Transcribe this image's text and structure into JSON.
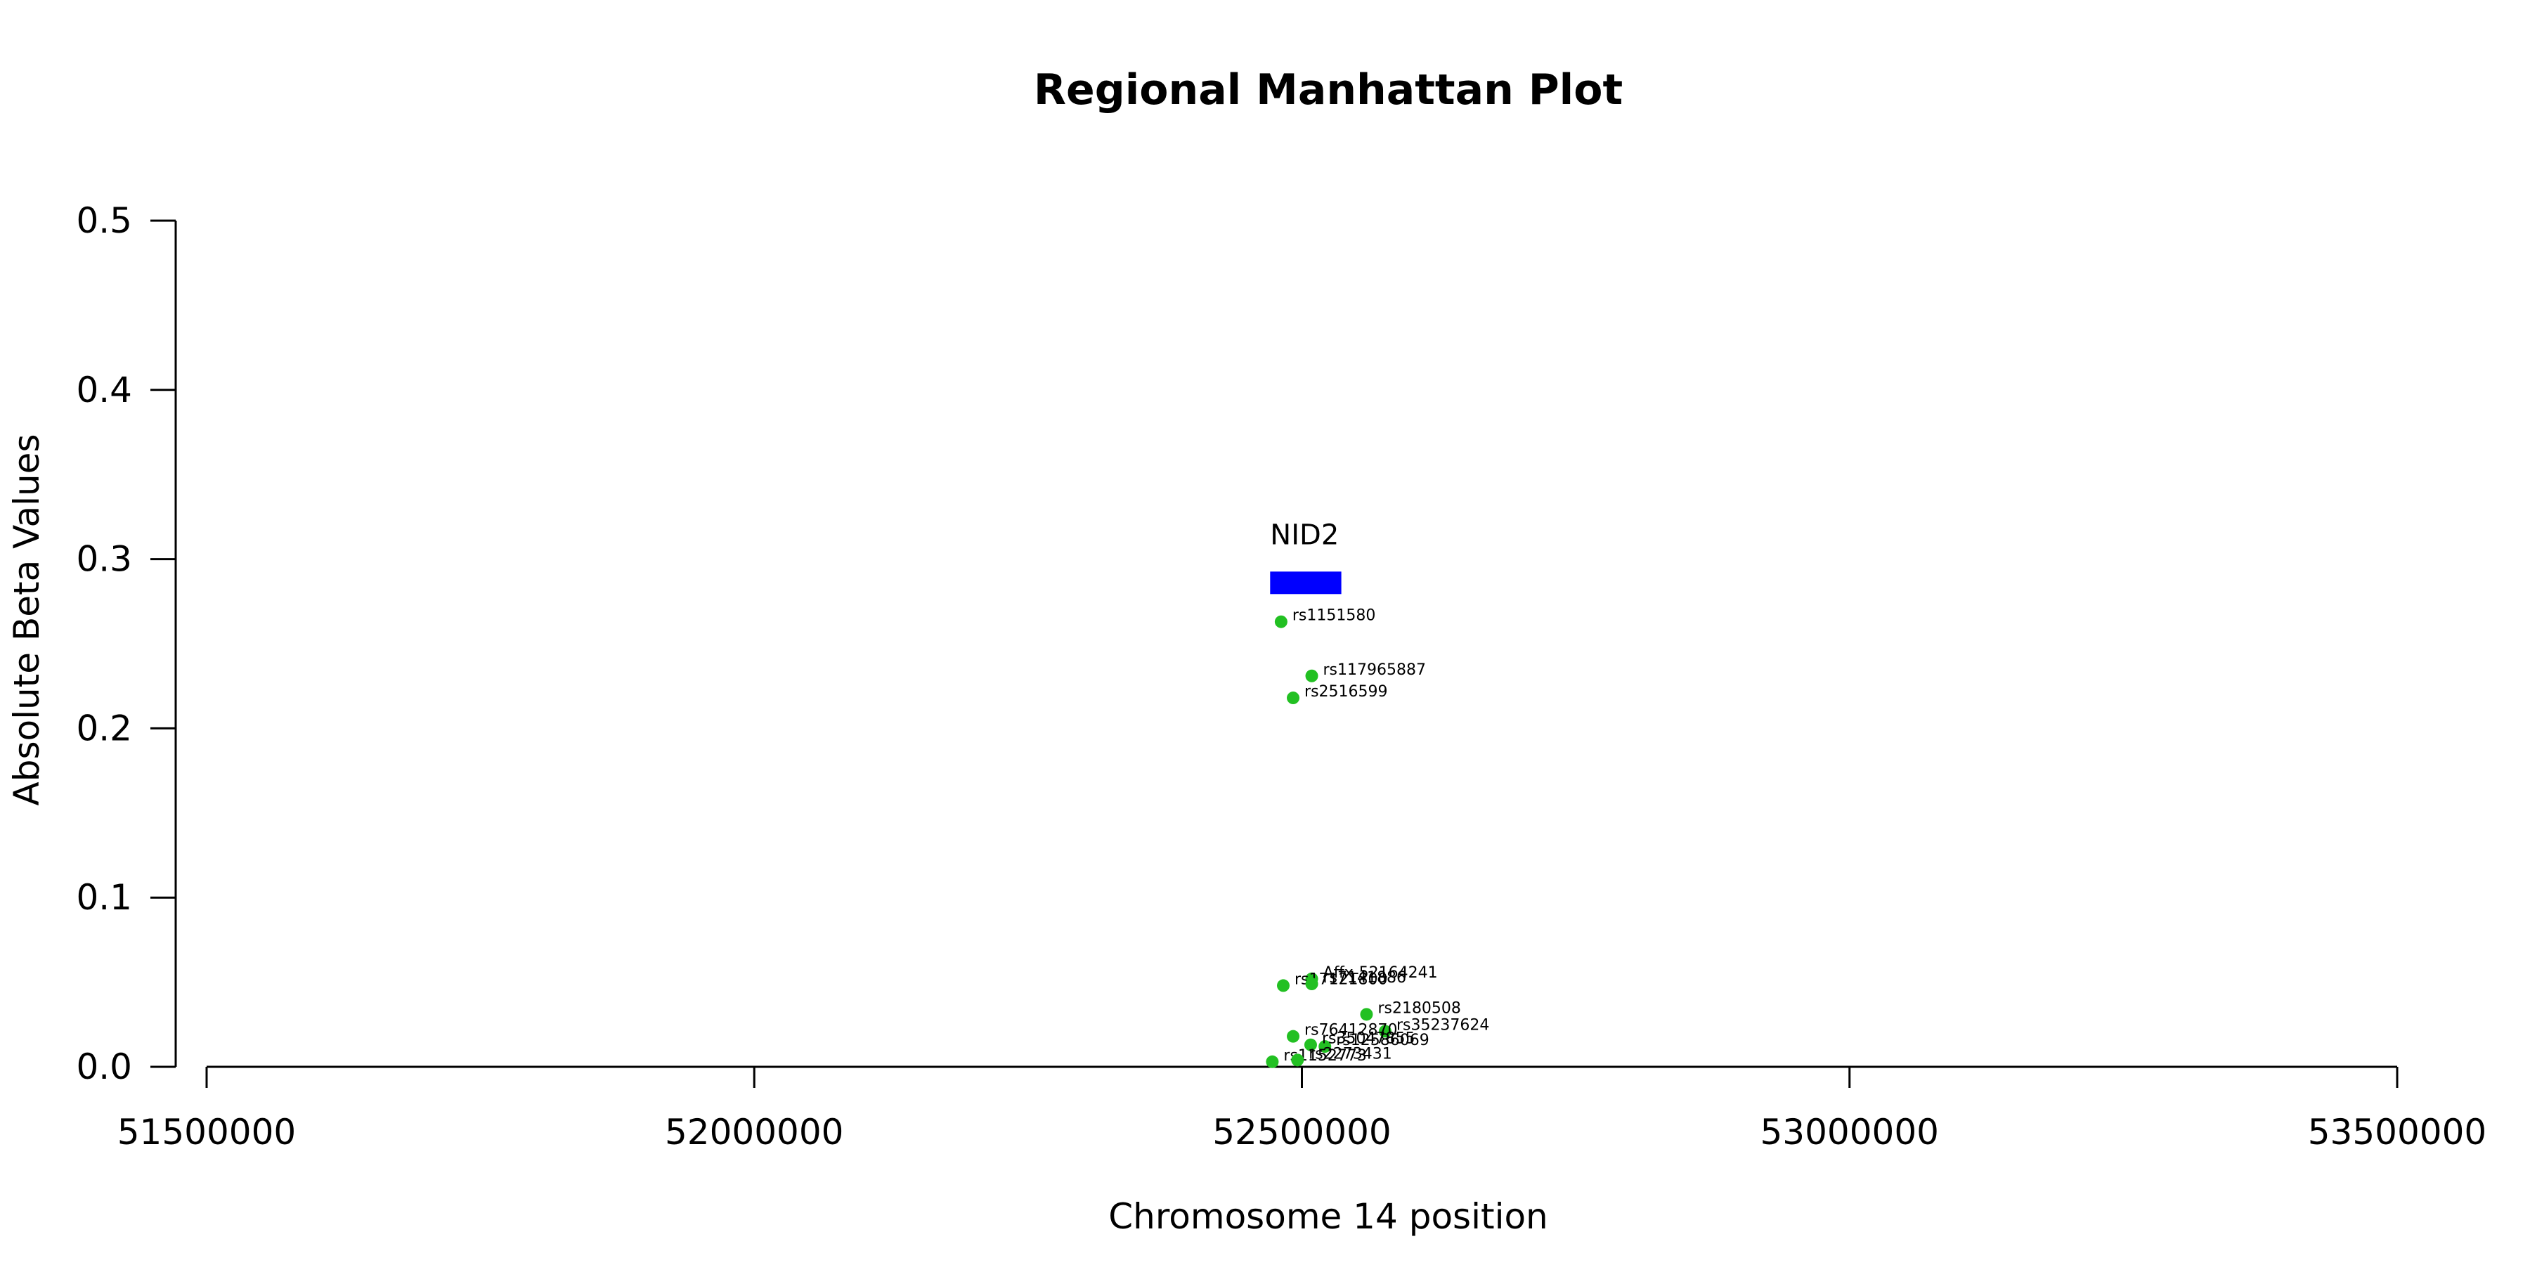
{
  "chart_data": {
    "type": "scatter",
    "title": "Regional Manhattan Plot",
    "xlabel": "Chromosome 14 position",
    "ylabel": "Absolute Beta Values",
    "xlim": [
      51500000,
      53500000
    ],
    "ylim": [
      0,
      0.5
    ],
    "x_ticks": [
      51500000,
      52000000,
      52500000,
      53000000,
      53500000
    ],
    "x_tick_labels": [
      "51500000",
      "52000000",
      "52500000",
      "53000000",
      "53500000"
    ],
    "y_ticks": [
      0,
      0.1,
      0.2,
      0.3,
      0.4,
      0.5
    ],
    "y_tick_labels": [
      "0.0",
      "0.1",
      "0.2",
      "0.3",
      "0.4",
      "0.5"
    ],
    "grid": false,
    "point_color": "#22c022",
    "gene_color": "#0000ff",
    "genes": [
      {
        "name": "NID2",
        "start": 52471000,
        "end": 52536000,
        "y": 0.286
      }
    ],
    "points": [
      {
        "label": "rs1151580",
        "x": 52481000,
        "y": 0.263
      },
      {
        "label": "rs117965887",
        "x": 52509000,
        "y": 0.231
      },
      {
        "label": "rs2516599",
        "x": 52492000,
        "y": 0.218
      },
      {
        "label": "Affx-52164241",
        "x": 52509000,
        "y": 0.052
      },
      {
        "label": "rs17121800",
        "x": 52483000,
        "y": 0.048
      },
      {
        "label": "rs7141886",
        "x": 52509000,
        "y": 0.049
      },
      {
        "label": "rs2180508",
        "x": 52559000,
        "y": 0.031
      },
      {
        "label": "rs35237624",
        "x": 52576000,
        "y": 0.021
      },
      {
        "label": "rs76412870",
        "x": 52492000,
        "y": 0.018
      },
      {
        "label": "rs12586069",
        "x": 52521000,
        "y": 0.012
      },
      {
        "label": "rs35047855",
        "x": 52508000,
        "y": 0.013
      },
      {
        "label": "rs1152773",
        "x": 52473000,
        "y": 0.003
      },
      {
        "label": "rs2273431",
        "x": 52496000,
        "y": 0.004
      }
    ]
  }
}
